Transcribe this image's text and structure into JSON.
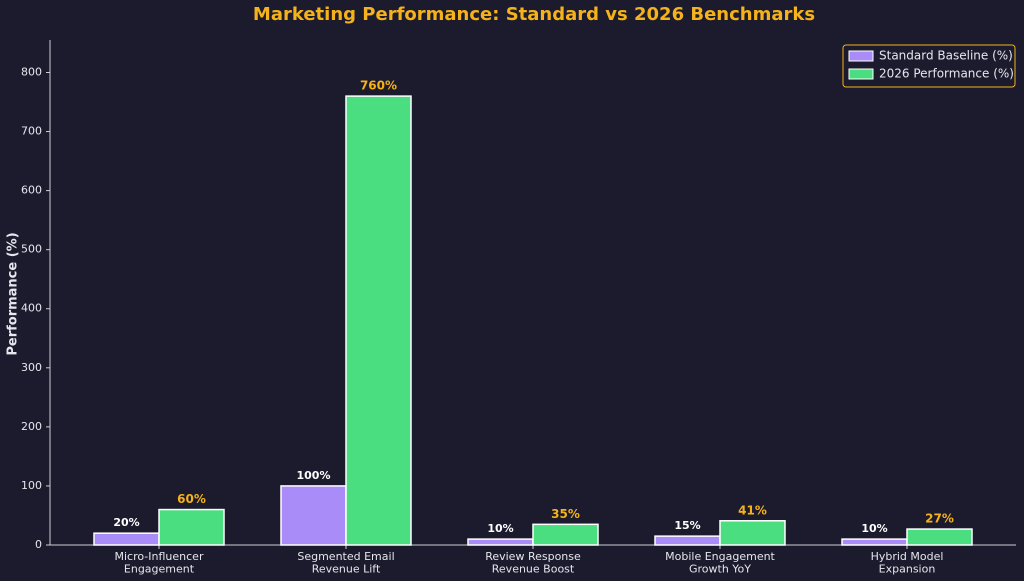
{
  "chart_data": {
    "type": "bar",
    "title": "Marketing Performance: Standard vs 2026 Benchmarks",
    "y_label": "Performance (%)",
    "categories": [
      "Micro-Influencer\nEngagement",
      "Segmented Email\nRevenue Lift",
      "Review Response\nRevenue Boost",
      "Mobile Engagement\nGrowth YoY",
      "Hybrid Model\nExpansion"
    ],
    "series": [
      {
        "name": "Standard Baseline (%)",
        "color": "#a98cf7",
        "label_color": "#ffffff",
        "values": [
          20,
          100,
          10,
          15,
          10
        ],
        "value_labels": [
          "20%",
          "100%",
          "10%",
          "15%",
          "10%"
        ]
      },
      {
        "name": "2026 Performance (%)",
        "color": "#4ade80",
        "label_color": "#f5b21a",
        "values": [
          60,
          760,
          35,
          41,
          27
        ],
        "value_labels": [
          "60%",
          "760%",
          "35%",
          "41%",
          "27%"
        ]
      }
    ],
    "ylim": [
      0,
      855
    ],
    "yticks": [
      0,
      100,
      200,
      300,
      400,
      500,
      600,
      700,
      800
    ],
    "grid": false,
    "legend": "upper-right",
    "title_color": "#f5b21a"
  }
}
